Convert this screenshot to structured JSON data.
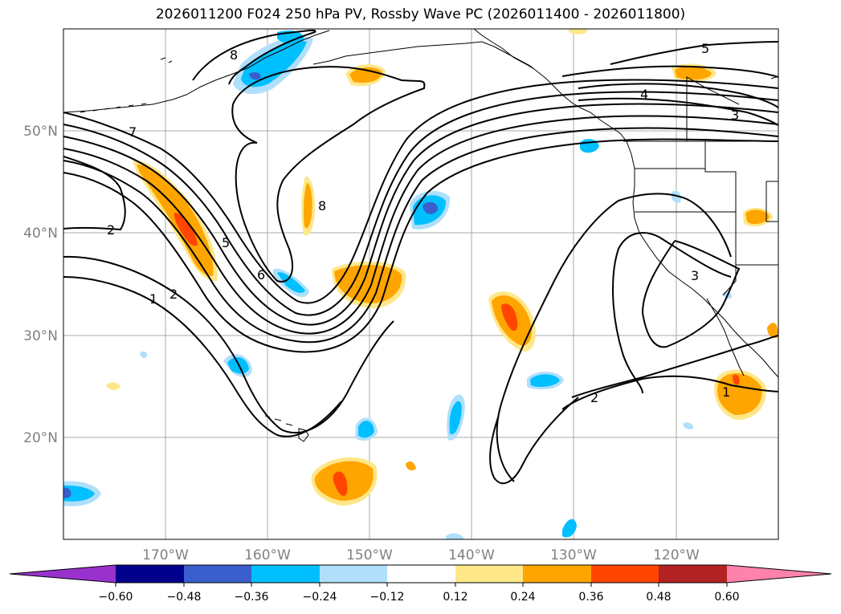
{
  "title": "2026011200 F024 250 hPa PV, Rossby Wave PC (2026011400 - 2026011800)",
  "map": {
    "projection": "PlateCarree",
    "lon_range": [
      -180,
      -110
    ],
    "lat_range": [
      10,
      60
    ],
    "lat_ticks": [
      {
        "value": 50,
        "label": "50°N"
      },
      {
        "value": 40,
        "label": "40°N"
      },
      {
        "value": 30,
        "label": "30°N"
      },
      {
        "value": 20,
        "label": "20°N"
      }
    ],
    "lon_ticks": [
      {
        "value": -170,
        "label": "170°W"
      },
      {
        "value": -160,
        "label": "160°W"
      },
      {
        "value": -150,
        "label": "150°W"
      },
      {
        "value": -140,
        "label": "140°W"
      },
      {
        "value": -130,
        "label": "130°W"
      },
      {
        "value": -120,
        "label": "120°W"
      }
    ],
    "contour_labels": [
      "8",
      "7",
      "5",
      "4",
      "3",
      "2",
      "1",
      "2",
      "5",
      "6",
      "8",
      "3",
      "2",
      "1"
    ]
  },
  "colorbar": {
    "ticks": [
      "−0.60",
      "−0.48",
      "−0.36",
      "−0.24",
      "−0.12",
      "0.12",
      "0.24",
      "0.36",
      "0.48",
      "0.60"
    ],
    "colors": [
      "#9932cc",
      "#00008b",
      "#3a5fcd",
      "#00bfff",
      "#afdffa",
      "#ffffff",
      "#fee789",
      "#ffa500",
      "#ff4500",
      "#b22222",
      "#ff82ab"
    ]
  }
}
